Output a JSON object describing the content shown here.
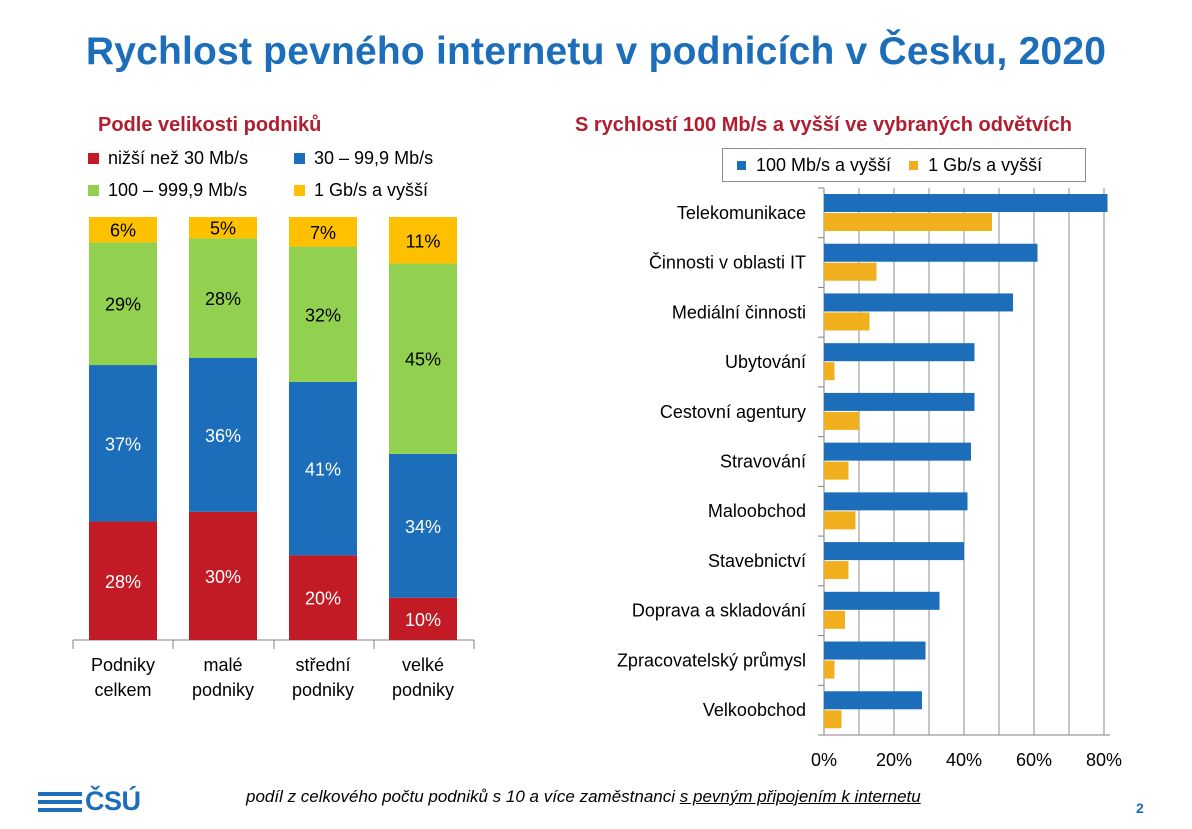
{
  "title": "Rychlost pevného internetu v podnicích v Česku, 2020",
  "left_subtitle": "Podle velikosti podniků",
  "right_subtitle": "S rychlostí 100 Mb/s a vyšší ve vybraných odvětvích",
  "footer": {
    "text_before": "podíl z celkového počtu podniků s 10 a více zaměstnanci ",
    "text_underlined": "s pevným připojením k internetu"
  },
  "page_number": "2",
  "logo_text": "ČSÚ",
  "colors": {
    "title": "#1c6dba",
    "subtitle": "#b01e2f",
    "red": "#c21b25",
    "blue": "#1c6dba",
    "green": "#92d050",
    "yellow": "#ffc000",
    "orange": "#f0b01e"
  },
  "chart_data": [
    {
      "type": "bar",
      "stacked": true,
      "orientation": "vertical",
      "title": "Podle velikosti podniků",
      "categories": [
        "Podniky celkem",
        "malé podniky",
        "střední podniky",
        "velké podniky"
      ],
      "category_lines": [
        [
          "Podniky",
          "celkem"
        ],
        [
          "malé",
          "podniky"
        ],
        [
          "střední",
          "podniky"
        ],
        [
          "velké",
          "podniky"
        ]
      ],
      "series": [
        {
          "name": "nižší než 30 Mb/s",
          "color": "#c21b25",
          "values": [
            28,
            30,
            20,
            10
          ]
        },
        {
          "name": "30 – 99,9 Mb/s",
          "color": "#1c6dba",
          "values": [
            37,
            36,
            41,
            34
          ]
        },
        {
          "name": "100 – 999,9 Mb/s",
          "color": "#92d050",
          "values": [
            29,
            28,
            32,
            45
          ]
        },
        {
          "name": "1 Gb/s a vyšší",
          "color": "#ffc000",
          "values": [
            6,
            5,
            7,
            11
          ]
        }
      ],
      "ylim": [
        0,
        100
      ],
      "unit": "%"
    },
    {
      "type": "bar",
      "orientation": "horizontal",
      "title": "S rychlostí 100 Mb/s a vyšší ve vybraných odvětvích",
      "categories": [
        "Telekomunikace",
        "Činnosti v oblasti IT",
        "Mediální činnosti",
        "Ubytování",
        "Cestovní agentury",
        "Stravování",
        "Maloobchod",
        "Stavebnictví",
        "Doprava a skladování",
        "Zpracovatelský průmysl",
        "Velkoobchod"
      ],
      "series": [
        {
          "name": "100 Mb/s a vyšší",
          "color": "#1c6dba",
          "values": [
            81,
            61,
            54,
            43,
            43,
            42,
            41,
            40,
            33,
            29,
            28
          ]
        },
        {
          "name": "1 Gb/s a vyšší",
          "color": "#f0b01e",
          "values": [
            48,
            15,
            13,
            3,
            10,
            7,
            9,
            7,
            6,
            3,
            5
          ]
        }
      ],
      "xlim": [
        0,
        85
      ],
      "xticks": [
        0,
        20,
        40,
        60,
        80
      ],
      "xtick_labels": [
        "0%",
        "20%",
        "40%",
        "60%",
        "80%"
      ],
      "legend_position": "top",
      "grid": true
    }
  ]
}
